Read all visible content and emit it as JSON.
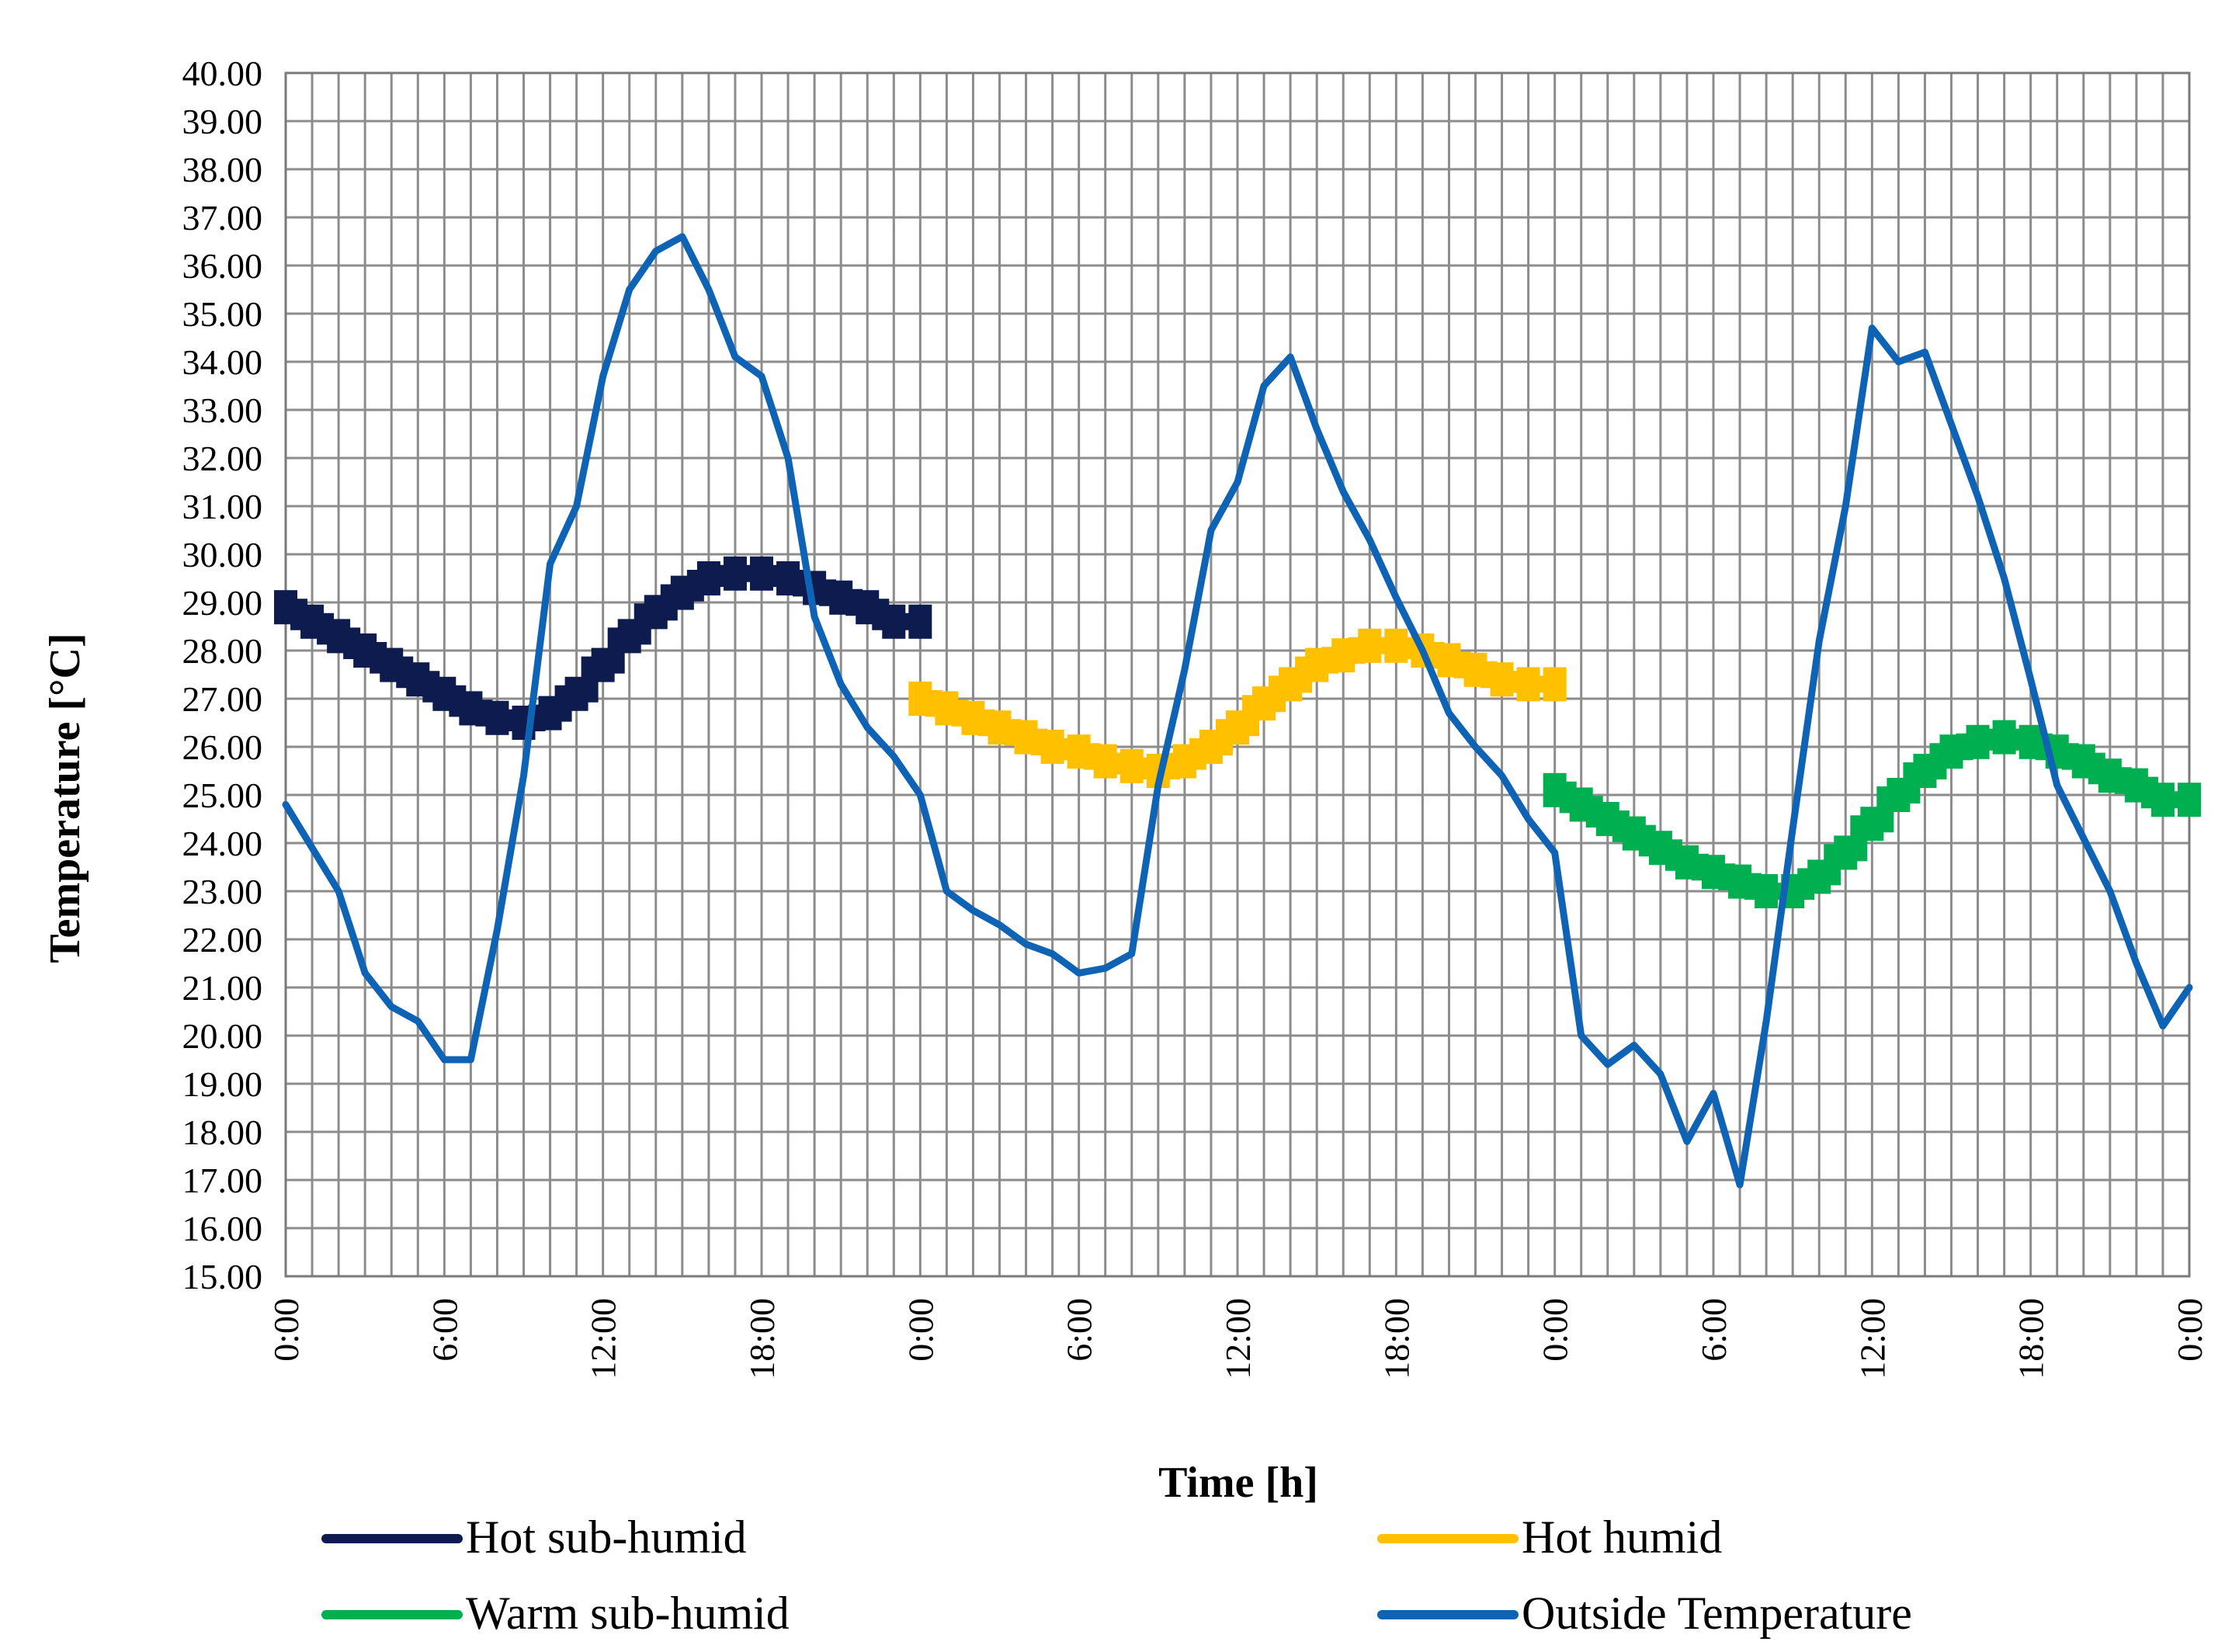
{
  "chart_data": {
    "type": "line",
    "title": "",
    "xlabel": "Time [h]",
    "ylabel": "Temperature [°C]",
    "ylim": [
      15,
      40
    ],
    "ytick_step": 1,
    "xlim": [
      0,
      72
    ],
    "xticks": [
      {
        "x": 0,
        "label": "0:00"
      },
      {
        "x": 6,
        "label": "6:00"
      },
      {
        "x": 12,
        "label": "12:00"
      },
      {
        "x": 18,
        "label": "18:00"
      },
      {
        "x": 24,
        "label": "0:00"
      },
      {
        "x": 30,
        "label": "6:00"
      },
      {
        "x": 36,
        "label": "12:00"
      },
      {
        "x": 42,
        "label": "18:00"
      },
      {
        "x": 48,
        "label": "0:00"
      },
      {
        "x": 54,
        "label": "6:00"
      },
      {
        "x": 60,
        "label": "12:00"
      },
      {
        "x": 66,
        "label": "18:00"
      },
      {
        "x": 72,
        "label": "0:00"
      }
    ],
    "legend_position": "bottom",
    "series": [
      {
        "name": "Hot sub-humid",
        "color": "#0d1b4f",
        "style": "step",
        "x": [
          0,
          1,
          2,
          3,
          4,
          5,
          6,
          7,
          8,
          9,
          10,
          11,
          12,
          13,
          14,
          15,
          16,
          17,
          18,
          19,
          20,
          21,
          22,
          23,
          24
        ],
        "values": [
          28.9,
          28.6,
          28.3,
          28.0,
          27.7,
          27.4,
          27.1,
          26.8,
          26.6,
          26.5,
          26.7,
          27.1,
          27.7,
          28.3,
          28.8,
          29.2,
          29.5,
          29.6,
          29.6,
          29.5,
          29.3,
          29.1,
          28.9,
          28.6,
          28.6
        ]
      },
      {
        "name": "Hot humid",
        "color": "#ffc000",
        "style": "step",
        "x": [
          24,
          25,
          26,
          27,
          28,
          29,
          30,
          31,
          32,
          33,
          34,
          35,
          36,
          37,
          38,
          39,
          40,
          41,
          42,
          43,
          44,
          45,
          46,
          47,
          48
        ],
        "values": [
          27.0,
          26.8,
          26.6,
          26.4,
          26.2,
          26.0,
          25.9,
          25.7,
          25.6,
          25.5,
          25.7,
          26.0,
          26.4,
          26.9,
          27.3,
          27.7,
          27.9,
          28.1,
          28.1,
          28.0,
          27.8,
          27.6,
          27.4,
          27.3,
          27.3
        ]
      },
      {
        "name": "Warm sub-humid",
        "color": "#00b050",
        "style": "step",
        "x": [
          48,
          49,
          50,
          51,
          52,
          53,
          54,
          55,
          56,
          57,
          58,
          59,
          60,
          61,
          62,
          63,
          64,
          65,
          66,
          67,
          68,
          69,
          70,
          71,
          72
        ],
        "values": [
          25.1,
          24.8,
          24.5,
          24.2,
          23.9,
          23.6,
          23.4,
          23.2,
          23.0,
          23.0,
          23.3,
          23.8,
          24.4,
          25.0,
          25.5,
          25.9,
          26.1,
          26.2,
          26.1,
          25.9,
          25.7,
          25.4,
          25.2,
          24.9,
          24.9
        ]
      },
      {
        "name": "Outside Temperature",
        "color": "#0f63b5",
        "style": "line",
        "x": [
          0,
          1,
          2,
          3,
          4,
          5,
          6,
          7,
          8,
          9,
          10,
          11,
          12,
          13,
          14,
          15,
          16,
          17,
          18,
          19,
          20,
          21,
          22,
          23,
          24,
          25,
          26,
          27,
          28,
          29,
          30,
          31,
          32,
          33,
          34,
          35,
          36,
          37,
          38,
          39,
          40,
          41,
          42,
          43,
          44,
          45,
          46,
          47,
          48,
          49,
          50,
          51,
          52,
          53,
          54,
          55,
          56,
          57,
          58,
          59,
          60,
          61,
          62,
          63,
          64,
          65,
          66,
          67,
          68,
          69,
          70,
          71,
          72
        ],
        "values": [
          24.8,
          23.9,
          23.0,
          21.3,
          20.6,
          20.3,
          19.5,
          19.5,
          22.2,
          25.4,
          29.8,
          31.0,
          33.7,
          35.5,
          36.3,
          36.6,
          35.5,
          34.1,
          33.7,
          32.0,
          28.7,
          27.3,
          26.4,
          25.8,
          25.0,
          23.0,
          22.6,
          22.3,
          21.9,
          21.7,
          21.3,
          21.4,
          21.7,
          25.2,
          27.6,
          30.5,
          31.5,
          33.5,
          34.1,
          32.6,
          31.3,
          30.3,
          29.1,
          28.0,
          26.7,
          26.0,
          25.4,
          24.5,
          23.8,
          20.0,
          19.4,
          19.8,
          19.2,
          17.8,
          18.8,
          16.9,
          20.3,
          24.3,
          28.2,
          31.0,
          34.7,
          34.0,
          34.2,
          32.7,
          31.2,
          29.5,
          27.4,
          25.2,
          24.1,
          23.0,
          21.5,
          20.2,
          21.0
        ]
      }
    ]
  }
}
